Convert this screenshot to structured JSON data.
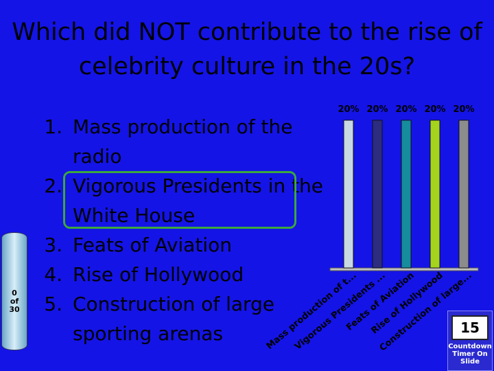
{
  "title": "Which did NOT contribute to the rise of celebrity culture in the 20s?",
  "items": [
    "Mass production of the radio",
    "Vigorous Presidents in the White House",
    "Feats of Aviation",
    "Rise of Hollywood",
    "Construction of large sporting arenas"
  ],
  "counter": {
    "value": 0,
    "of": "of",
    "total": 30
  },
  "timer": {
    "seconds": 15,
    "caption": "Countdown Timer On Slide"
  },
  "chart_data": {
    "type": "bar",
    "categories": [
      "Mass production of t...",
      "Vigorous Presidents ...",
      "Feats of Aviation",
      "Rise of Hollywood",
      "Construction of large..."
    ],
    "values": [
      20,
      20,
      20,
      20,
      20
    ],
    "value_labels": [
      "20%",
      "20%",
      "20%",
      "20%",
      "20%"
    ],
    "colors": [
      "#c8d8e4",
      "#2c2c80",
      "#168c9c",
      "#a4d41c",
      "#8c8c8c"
    ],
    "ylim": [
      0,
      20
    ]
  }
}
